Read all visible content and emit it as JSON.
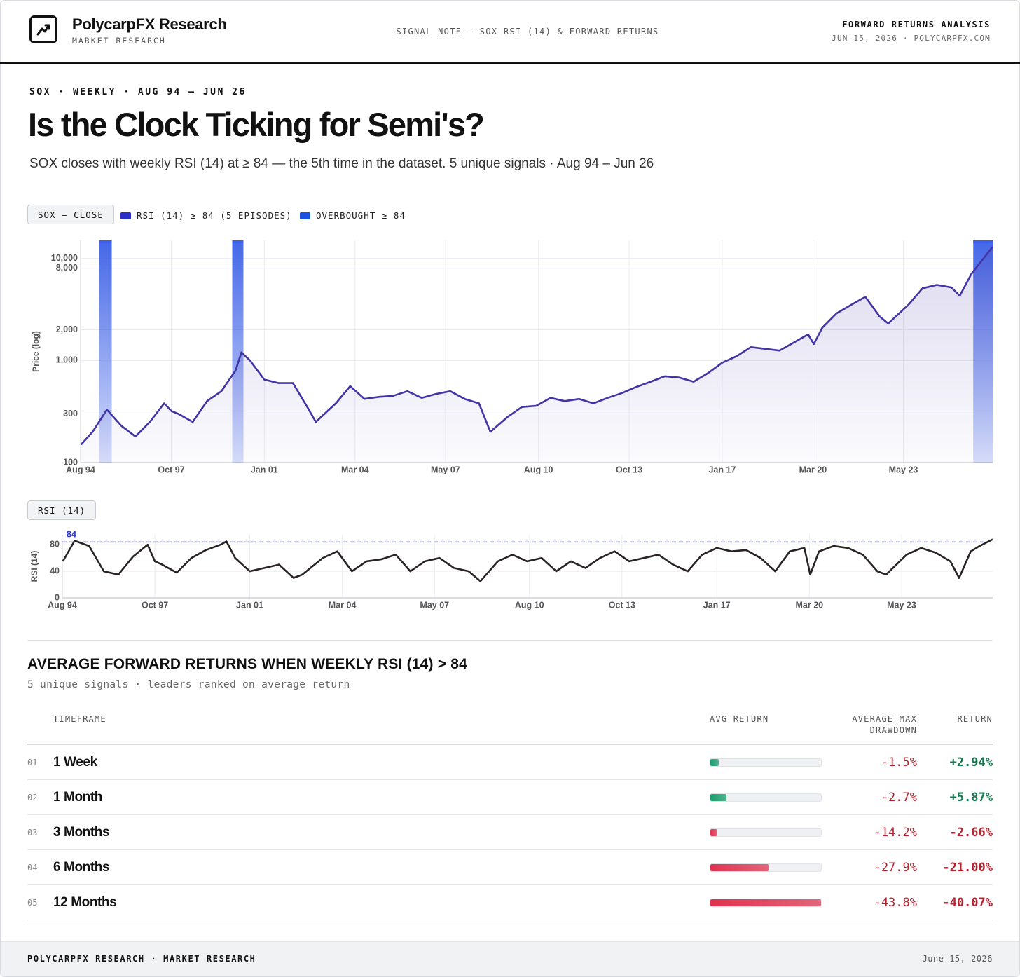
{
  "header": {
    "brand": "PolycarpFX Research",
    "brand_subtitle": "MARKET RESEARCH",
    "note": "SIGNAL NOTE — SOX RSI (14) & FORWARD RETURNS",
    "right_title": "FORWARD RETURNS ANALYSIS",
    "right_subtitle": "JUN 15, 2026 · POLYCARPFX.COM"
  },
  "intro": {
    "eyebrow": "SOX · WEEKLY · AUG 94 – JUN 26",
    "title": "Is the Clock Ticking for Semi's?",
    "subtitle": "SOX closes with weekly RSI (14) at ≥ 84 — the 5th time in the dataset. 5 unique signals · Aug 94 – Jun 26"
  },
  "chart_data": [
    {
      "type": "line",
      "label": "SOX — CLOSE",
      "legend": [
        {
          "name": "RSI (14) ≥ 84 (5 EPISODES)",
          "color": "#2b2fc4"
        },
        {
          "name": "OVERBOUGHT ≥ 84",
          "color": "#1d4fe0"
        }
      ],
      "y_label": "Price (log)",
      "log_scale": true,
      "grid": true,
      "x": [
        1994.6,
        1995.0,
        1995.5,
        1996.0,
        1996.5,
        1997.0,
        1997.5,
        1997.75,
        1998.0,
        1998.5,
        1999.0,
        1999.5,
        2000.0,
        2000.2,
        2000.5,
        2001.0,
        2001.5,
        2002.0,
        2002.5,
        2002.8,
        2003.5,
        2004.0,
        2004.5,
        2005.0,
        2005.5,
        2006.0,
        2006.5,
        2007.0,
        2007.5,
        2008.0,
        2008.5,
        2008.9,
        2009.5,
        2010.0,
        2010.5,
        2011.0,
        2011.5,
        2012.0,
        2012.5,
        2013.0,
        2013.5,
        2014.0,
        2014.5,
        2015.0,
        2015.5,
        2016.0,
        2016.5,
        2017.0,
        2017.5,
        2018.0,
        2018.5,
        2019.0,
        2019.5,
        2020.0,
        2020.2,
        2020.5,
        2021.0,
        2021.5,
        2022.0,
        2022.5,
        2022.8,
        2023.5,
        2024.0,
        2024.5,
        2025.0,
        2025.3,
        2025.7,
        2026.0,
        2026.45
      ],
      "series": [
        {
          "name": "SOX",
          "color": "#4334a6",
          "values": [
            150,
            200,
            330,
            230,
            180,
            250,
            380,
            320,
            300,
            250,
            400,
            500,
            800,
            1200,
            1000,
            650,
            600,
            600,
            350,
            250,
            380,
            560,
            420,
            440,
            450,
            500,
            430,
            470,
            500,
            420,
            380,
            200,
            280,
            350,
            360,
            430,
            400,
            420,
            380,
            430,
            480,
            550,
            620,
            700,
            680,
            620,
            750,
            950,
            1100,
            1350,
            1300,
            1250,
            1500,
            1800,
            1450,
            2100,
            2900,
            3500,
            4200,
            2700,
            2300,
            3500,
            5100,
            5500,
            5200,
            4300,
            7000,
            9000,
            13000
          ]
        }
      ],
      "highlights": [
        [
          1995.23,
          1995.67
        ],
        [
          1999.88,
          2000.27
        ],
        [
          2025.77,
          2026.45
        ]
      ],
      "highlight_color": "#3b5fe6",
      "xlim": [
        1994.58,
        2026.45
      ],
      "xticks": [
        {
          "value": 1994.58,
          "label": "Aug 94"
        },
        {
          "value": 1997.75,
          "label": "Oct 97"
        },
        {
          "value": 2001.0,
          "label": "Jan 01"
        },
        {
          "value": 2004.17,
          "label": "Mar 04"
        },
        {
          "value": 2007.33,
          "label": "May 07"
        },
        {
          "value": 2010.58,
          "label": "Aug 10"
        },
        {
          "value": 2013.75,
          "label": "Oct 13"
        },
        {
          "value": 2017.0,
          "label": "Jan 17"
        },
        {
          "value": 2020.17,
          "label": "Mar 20"
        },
        {
          "value": 2023.33,
          "label": "May 23"
        }
      ],
      "ylim": [
        100,
        15000
      ],
      "yticks": [
        100,
        300,
        {
          "value": 1000,
          "label": "1,000"
        },
        {
          "value": 2000,
          "label": "2,000"
        },
        {
          "value": 8000,
          "label": "8,000"
        },
        {
          "value": 10000,
          "label": "10,000"
        }
      ]
    },
    {
      "type": "line",
      "label": "RSI (14)",
      "y_label": "RSI (14)",
      "grid": true,
      "threshold": 84,
      "threshold_color": "#7f84d6",
      "x": [
        1994.6,
        1995.0,
        1995.5,
        1996.0,
        1996.5,
        1997.0,
        1997.5,
        1997.75,
        1998.0,
        1998.5,
        1999.0,
        1999.5,
        2000.0,
        2000.2,
        2000.5,
        2001.0,
        2001.5,
        2002.0,
        2002.5,
        2002.8,
        2003.5,
        2004.0,
        2004.5,
        2005.0,
        2005.5,
        2006.0,
        2006.5,
        2007.0,
        2007.5,
        2008.0,
        2008.5,
        2008.9,
        2009.5,
        2010.0,
        2010.5,
        2011.0,
        2011.5,
        2012.0,
        2012.5,
        2013.0,
        2013.5,
        2014.0,
        2014.5,
        2015.0,
        2015.5,
        2016.0,
        2016.5,
        2017.0,
        2017.5,
        2018.0,
        2018.5,
        2019.0,
        2019.5,
        2020.0,
        2020.2,
        2020.5,
        2021.0,
        2021.5,
        2022.0,
        2022.5,
        2022.8,
        2023.5,
        2024.0,
        2024.5,
        2025.0,
        2025.3,
        2025.7,
        2026.0,
        2026.45
      ],
      "series": [
        {
          "name": "RSI (14)",
          "color": "#2a2424",
          "values": [
            55,
            86,
            78,
            40,
            35,
            62,
            80,
            55,
            50,
            38,
            60,
            72,
            80,
            85,
            60,
            40,
            45,
            50,
            30,
            35,
            60,
            70,
            40,
            55,
            58,
            65,
            40,
            55,
            60,
            45,
            40,
            25,
            55,
            65,
            55,
            60,
            40,
            55,
            45,
            60,
            70,
            55,
            60,
            65,
            50,
            40,
            65,
            75,
            70,
            72,
            60,
            40,
            70,
            75,
            35,
            70,
            78,
            75,
            65,
            40,
            35,
            65,
            75,
            68,
            55,
            30,
            70,
            78,
            88
          ]
        }
      ],
      "xlim": [
        1994.58,
        2026.45
      ],
      "xticks": [
        {
          "value": 1994.58,
          "label": "Aug 94"
        },
        {
          "value": 1997.75,
          "label": "Oct 97"
        },
        {
          "value": 2001.0,
          "label": "Jan 01"
        },
        {
          "value": 2004.17,
          "label": "Mar 04"
        },
        {
          "value": 2007.33,
          "label": "May 07"
        },
        {
          "value": 2010.58,
          "label": "Aug 10"
        },
        {
          "value": 2013.75,
          "label": "Oct 13"
        },
        {
          "value": 2017.0,
          "label": "Jan 17"
        },
        {
          "value": 2020.17,
          "label": "Mar 20"
        },
        {
          "value": 2023.33,
          "label": "May 23"
        }
      ],
      "ylim": [
        0,
        95
      ],
      "yticks": [
        0,
        40,
        80
      ]
    }
  ],
  "returns": {
    "title": "AVERAGE FORWARD RETURNS WHEN WEEKLY RSI (14) > 84",
    "subtitle": "5 unique signals · leaders ranked on average return",
    "columns": [
      "TIMEFRAME",
      "AVG RETURN",
      "AVERAGE MAX DRAWDOWN",
      "RETURN"
    ],
    "positive_color": "#1a9c6c",
    "negative_color": "#e0314f",
    "rows": [
      {
        "index": "01",
        "timeframe": "1 Week",
        "drawdown": "-1.5%",
        "return": 2.94,
        "return_label": "+2.94%"
      },
      {
        "index": "02",
        "timeframe": "1 Month",
        "drawdown": "-2.7%",
        "return": 5.87,
        "return_label": "+5.87%"
      },
      {
        "index": "03",
        "timeframe": "3 Months",
        "drawdown": "-14.2%",
        "return": -2.66,
        "return_label": "-2.66%"
      },
      {
        "index": "04",
        "timeframe": "6 Months",
        "drawdown": "-27.9%",
        "return": -21.0,
        "return_label": "-21.00%"
      },
      {
        "index": "05",
        "timeframe": "12 Months",
        "drawdown": "-43.8%",
        "return": -40.07,
        "return_label": "-40.07%"
      }
    ]
  },
  "footer": {
    "left": "POLYCARPFX RESEARCH · MARKET RESEARCH",
    "right": "June 15, 2026"
  }
}
